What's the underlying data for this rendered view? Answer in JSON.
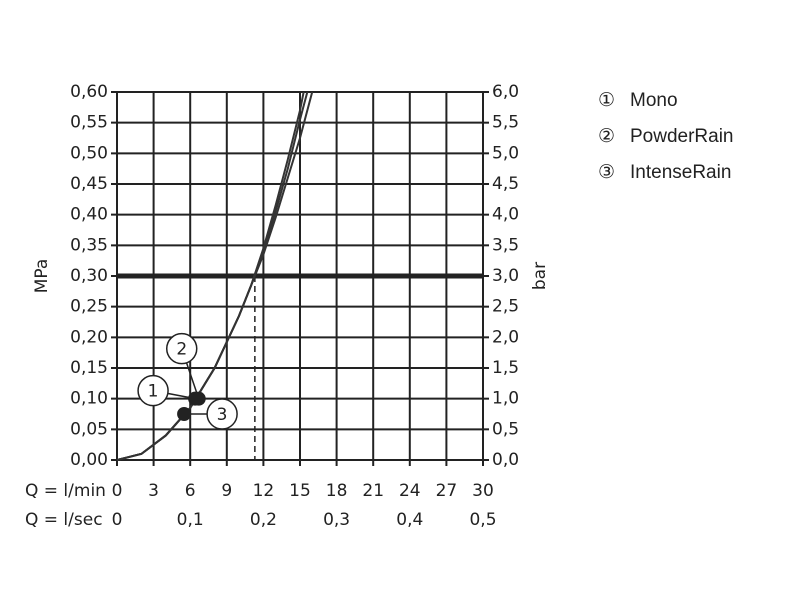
{
  "chart_data": {
    "type": "line",
    "ylabel": "MPa",
    "y2label": "bar",
    "xlabel": "Q = l/min",
    "x2label": "Q = l/sec",
    "xlim": [
      0,
      30
    ],
    "xticks": [
      0,
      3,
      6,
      9,
      12,
      15,
      18,
      21,
      24,
      27,
      30
    ],
    "x2lim": [
      0,
      0.5
    ],
    "x2ticks": [
      0,
      {
        "value": 0.1,
        "label": "0,1"
      },
      {
        "value": 0.2,
        "label": "0,2"
      },
      {
        "value": 0.3,
        "label": "0,3"
      },
      {
        "value": 0.4,
        "label": "0,4"
      },
      {
        "value": 0.5,
        "label": "0,5"
      }
    ],
    "ylim": [
      0,
      0.6
    ],
    "yticks": [
      {
        "value": 0,
        "label": "0,00"
      },
      {
        "value": 0.05,
        "label": "0,05"
      },
      {
        "value": 0.1,
        "label": "0,10"
      },
      {
        "value": 0.15,
        "label": "0,15"
      },
      {
        "value": 0.2,
        "label": "0,20"
      },
      {
        "value": 0.25,
        "label": "0,25"
      },
      {
        "value": 0.3,
        "label": "0,30"
      },
      {
        "value": 0.35,
        "label": "0,35"
      },
      {
        "value": 0.4,
        "label": "0,40"
      },
      {
        "value": 0.45,
        "label": "0,45"
      },
      {
        "value": 0.5,
        "label": "0,50"
      },
      {
        "value": 0.55,
        "label": "0,55"
      },
      {
        "value": 0.6,
        "label": "0,60"
      }
    ],
    "y2lim": [
      0,
      6
    ],
    "y2ticks": [
      {
        "value": 0,
        "label": "0,0"
      },
      {
        "value": 0.5,
        "label": "0,5"
      },
      {
        "value": 1,
        "label": "1,0"
      },
      {
        "value": 1.5,
        "label": "1,5"
      },
      {
        "value": 2,
        "label": "2,0"
      },
      {
        "value": 2.5,
        "label": "2,5"
      },
      {
        "value": 3,
        "label": "3,0"
      },
      {
        "value": 3.5,
        "label": "3,5"
      },
      {
        "value": 4,
        "label": "4,0"
      },
      {
        "value": 4.5,
        "label": "4,5"
      },
      {
        "value": 5,
        "label": "5,0"
      },
      {
        "value": 5.5,
        "label": "5,5"
      },
      {
        "value": 6,
        "label": "6,0"
      }
    ],
    "grid": true,
    "reference_pressure": 0.3,
    "reference_flow": 11.3,
    "series": [
      {
        "name": "Mono",
        "symbol": "①",
        "color": "#333333",
        "x": [
          0,
          2,
          4,
          6,
          8,
          10,
          11,
          12,
          13,
          14,
          15,
          16
        ],
        "values": [
          0,
          0.01,
          0.04,
          0.085,
          0.15,
          0.235,
          0.285,
          0.335,
          0.395,
          0.46,
          0.525,
          0.6
        ]
      },
      {
        "name": "PowderRain",
        "symbol": "②",
        "color": "#333333",
        "x": [
          0,
          2,
          4,
          6,
          8,
          10,
          11,
          12,
          13,
          14,
          15,
          15.6
        ],
        "values": [
          0,
          0.01,
          0.04,
          0.085,
          0.15,
          0.235,
          0.285,
          0.34,
          0.405,
          0.475,
          0.555,
          0.6
        ]
      },
      {
        "name": "IntenseRain",
        "symbol": "③",
        "color": "#333333",
        "x": [
          0,
          2,
          4,
          6,
          8,
          10,
          11,
          12,
          13,
          14,
          15,
          15.3
        ],
        "values": [
          0,
          0.01,
          0.04,
          0.085,
          0.15,
          0.235,
          0.285,
          0.345,
          0.415,
          0.49,
          0.57,
          0.6
        ]
      }
    ],
    "annotations": [
      {
        "label": "1",
        "x": 6.4,
        "y": 0.1
      },
      {
        "label": "2",
        "x": 6.7,
        "y": 0.1
      },
      {
        "label": "3",
        "x": 5.5,
        "y": 0.075
      }
    ]
  }
}
